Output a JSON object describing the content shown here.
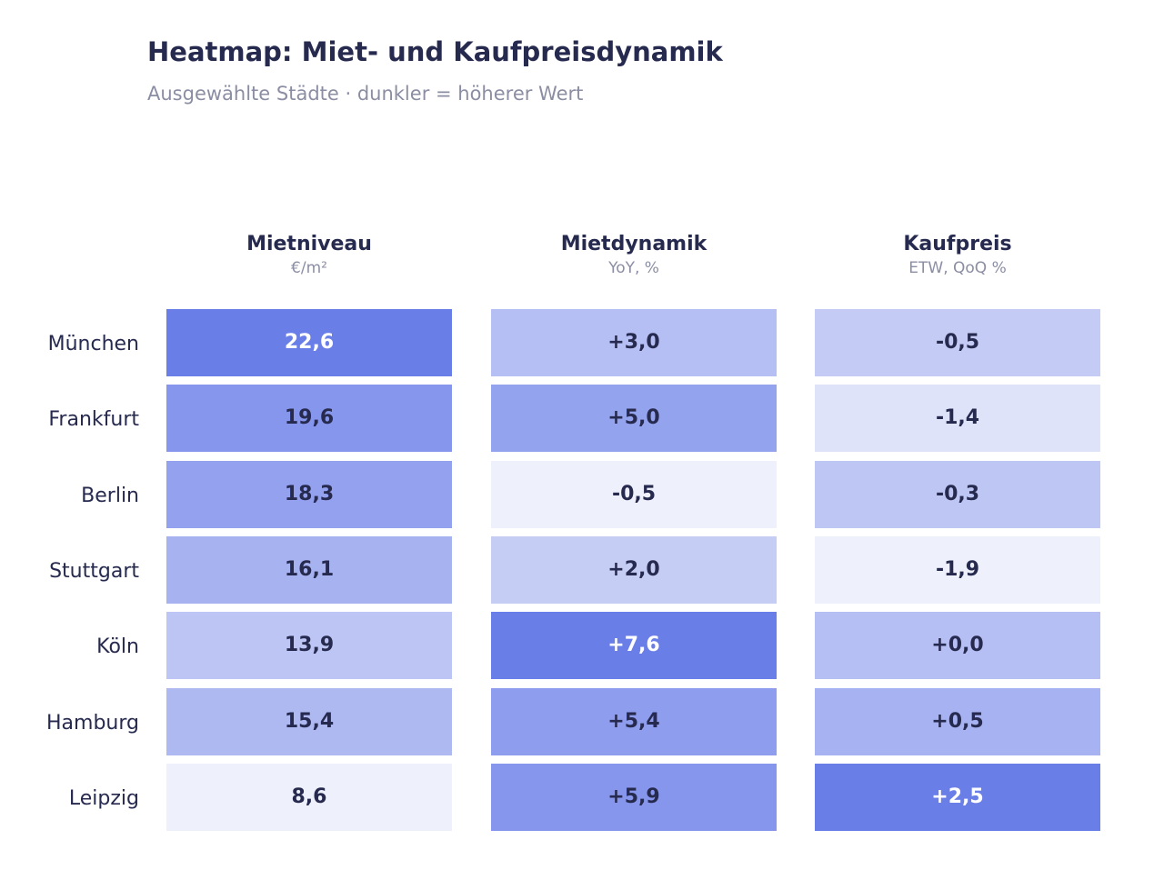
{
  "chart_data": {
    "type": "heatmap",
    "title": "Heatmap: Miet- und Kaufpreisdynamik",
    "subtitle": "Ausgewählte Städte · dunkler = höherer Wert",
    "rows": [
      "München",
      "Frankfurt",
      "Berlin",
      "Stuttgart",
      "Köln",
      "Hamburg",
      "Leipzig"
    ],
    "columns": [
      {
        "name": "Mietniveau",
        "unit": "€/m²",
        "values": [
          22.6,
          19.6,
          18.3,
          16.1,
          13.9,
          15.4,
          8.6
        ],
        "labels": [
          "22,6",
          "19,6",
          "18,3",
          "16,1",
          "13,9",
          "15,4",
          "8,6"
        ]
      },
      {
        "name": "Mietdynamik",
        "unit": "YoY, %",
        "values": [
          3.0,
          5.0,
          -0.5,
          2.0,
          7.6,
          5.4,
          5.9
        ],
        "labels": [
          "+3,0",
          "+5,0",
          "-0,5",
          "+2,0",
          "+7,6",
          "+5,4",
          "+5,9"
        ]
      },
      {
        "name": "Kaufpreis",
        "unit": "ETW, QoQ %",
        "values": [
          -0.5,
          -1.4,
          -0.3,
          -1.9,
          0.0,
          0.5,
          2.5
        ],
        "labels": [
          "-0,5",
          "-1,4",
          "-0,3",
          "-1,9",
          "+0,0",
          "+0,5",
          "+2,5"
        ]
      }
    ],
    "color_low": "#eef0fb",
    "color_high": "#6a7ee8",
    "text_dark": "#272a4f",
    "text_light": "#ffffff"
  }
}
